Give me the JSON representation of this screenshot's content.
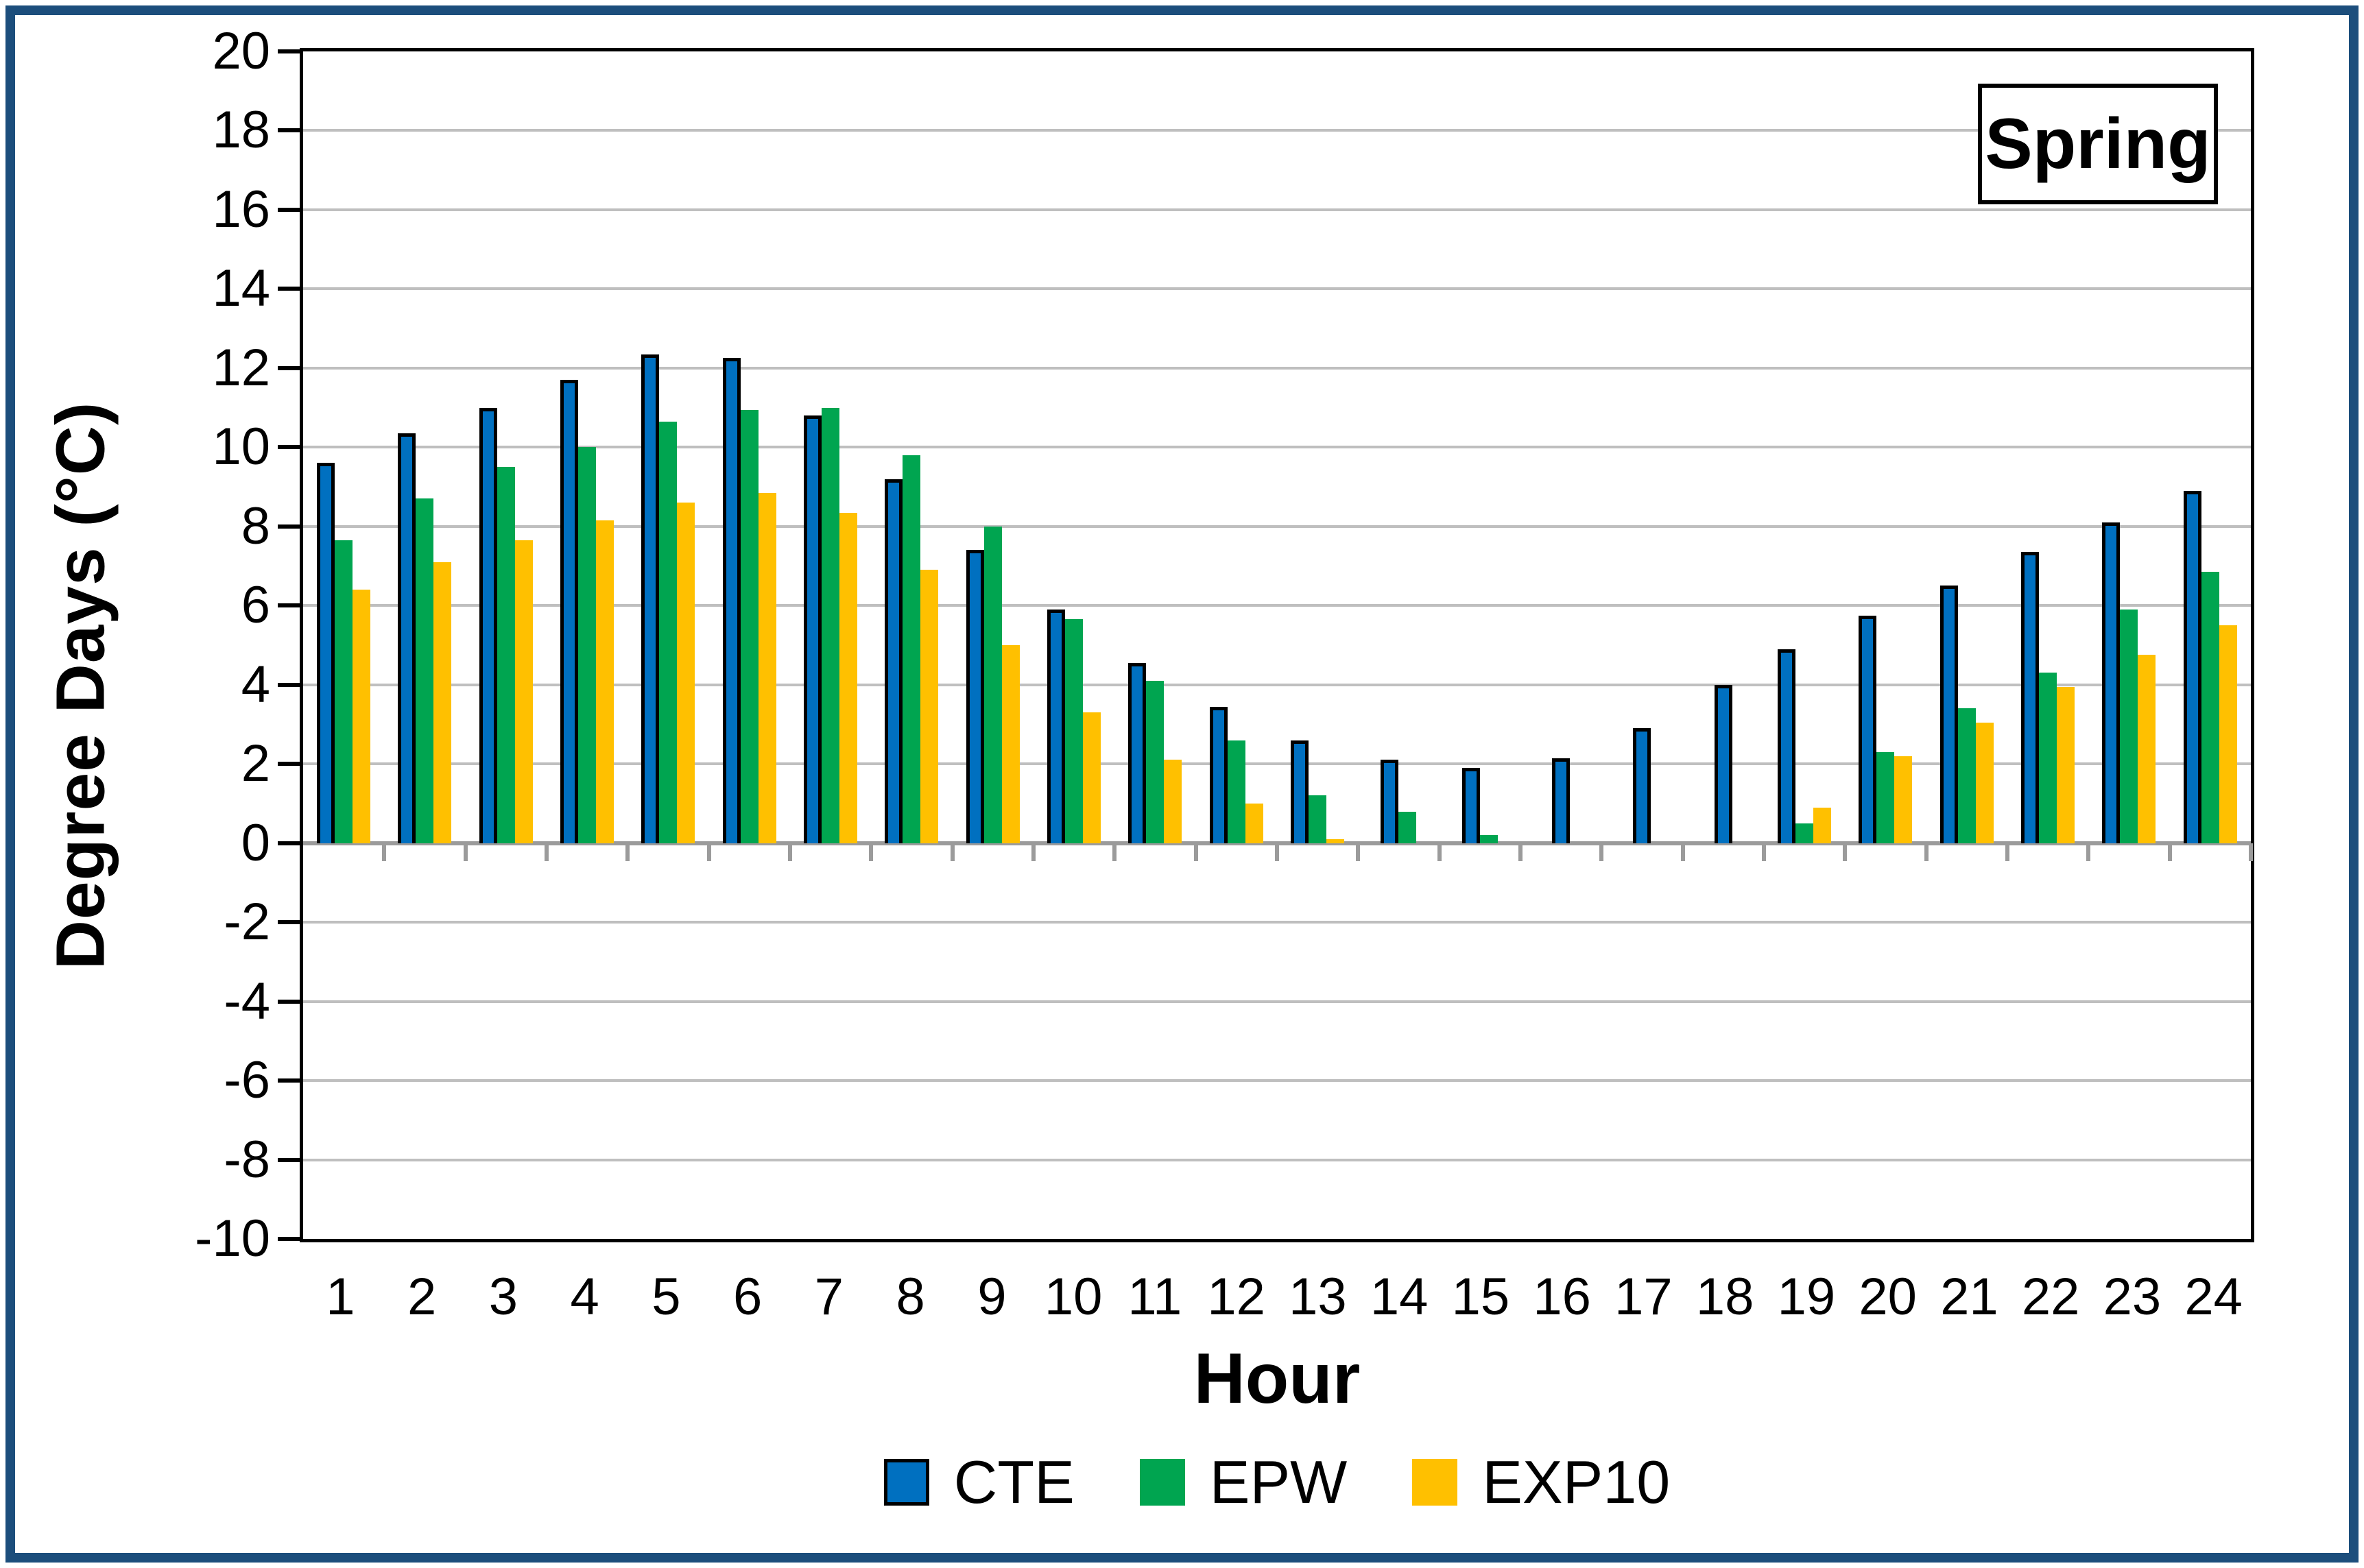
{
  "figure": {
    "season_label": "Spring",
    "frame_color": "#1C4E7C",
    "background": "#FFFFFF"
  },
  "chart_data": {
    "type": "bar",
    "title": "",
    "xlabel": "Hour",
    "ylabel": "Degree Days (°C)",
    "ylim": [
      -10,
      20
    ],
    "ytick_step": 2,
    "ytick_labels": [
      "20",
      "18",
      "16",
      "14",
      "12",
      "10",
      "8",
      "6",
      "4",
      "2",
      "0",
      "-2",
      "-4",
      "-6",
      "-8",
      "-10"
    ],
    "grid": "horizontal",
    "gridline_color": "#BFBFBF",
    "category_axis_color": "#9B9B9B",
    "legend_position": "bottom",
    "annotation": "Spring",
    "categories": [
      "1",
      "2",
      "3",
      "4",
      "5",
      "6",
      "7",
      "8",
      "9",
      "10",
      "11",
      "12",
      "13",
      "14",
      "15",
      "16",
      "17",
      "18",
      "19",
      "20",
      "21",
      "22",
      "23",
      "24"
    ],
    "series": [
      {
        "name": "CTE",
        "color": "#0070C0",
        "outlined": true,
        "values": [
          9.6,
          10.35,
          11.0,
          11.7,
          12.35,
          12.25,
          10.8,
          9.2,
          7.4,
          5.9,
          4.55,
          3.45,
          2.6,
          2.1,
          1.9,
          2.15,
          2.9,
          4.0,
          4.9,
          5.75,
          6.5,
          7.35,
          8.1,
          8.9
        ]
      },
      {
        "name": "EPW",
        "color": "#00A550",
        "outlined": false,
        "values": [
          7.65,
          8.7,
          9.5,
          10.0,
          10.65,
          10.95,
          11.0,
          9.8,
          8.0,
          5.65,
          4.1,
          2.6,
          1.2,
          0.8,
          0.2,
          0,
          0,
          0,
          0.5,
          2.3,
          3.4,
          4.3,
          5.9,
          6.85
        ]
      },
      {
        "name": "EXP10",
        "color": "#FFC000",
        "outlined": false,
        "values": [
          6.4,
          7.1,
          7.65,
          8.15,
          8.6,
          8.85,
          8.35,
          6.9,
          5.0,
          3.3,
          2.1,
          1.0,
          0.1,
          0,
          0,
          0,
          0,
          0,
          0.9,
          2.2,
          3.05,
          3.95,
          4.75,
          5.5
        ]
      }
    ]
  }
}
